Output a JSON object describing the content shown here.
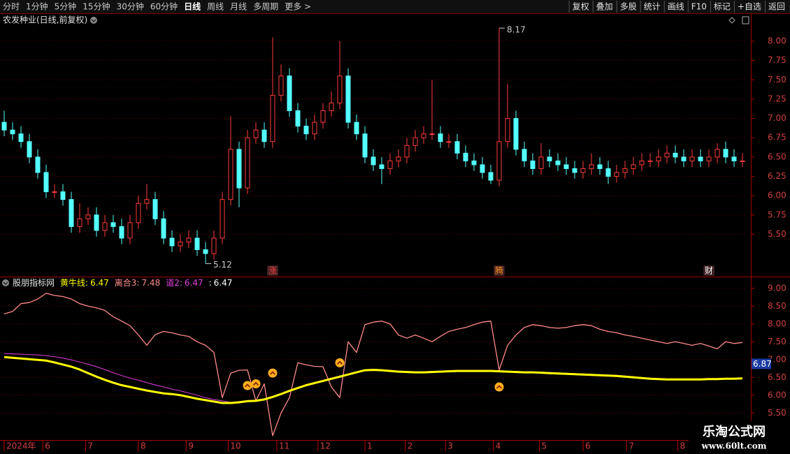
{
  "toolbar": {
    "left": [
      "分时",
      "1分钟",
      "5分钟",
      "15分钟",
      "30分钟",
      "60分钟",
      "日线",
      "周线",
      "月线",
      "多周期",
      "更多 >"
    ],
    "active_index": 6,
    "right": [
      "复权",
      "叠加",
      "多股",
      "统计",
      "画线",
      "F10",
      "标记",
      "+自选",
      "返回"
    ]
  },
  "chart_data": [
    {
      "type": "candlestick",
      "title": "农发种业(日线,前复权)",
      "up_color": "#ff3c3c",
      "down_color": "#54ffff",
      "grid": true,
      "xlim": [
        -0.5,
        88.5
      ],
      "ylim": [
        4.97,
        8.19
      ],
      "yticks": [
        {
          "value": 8,
          "label": "8.00"
        },
        {
          "value": 7.75,
          "label": "7.75"
        },
        {
          "value": 7.5,
          "label": "7.50"
        },
        {
          "value": 7.25,
          "label": "7.25"
        },
        {
          "value": 7,
          "label": "7.00"
        },
        {
          "value": 6.75,
          "label": "6.75"
        },
        {
          "value": 6.5,
          "label": "6.50"
        },
        {
          "value": 6.25,
          "label": "6.25"
        },
        {
          "value": 6,
          "label": "6.00"
        },
        {
          "value": 5.75,
          "label": "5.75"
        },
        {
          "value": 5.5,
          "label": "5.50"
        }
      ],
      "open": [
        6.95,
        6.85,
        6.8,
        6.7,
        6.5,
        6.3,
        6.05,
        6.05,
        5.95,
        5.6,
        5.7,
        5.75,
        5.55,
        5.65,
        5.6,
        5.45,
        5.65,
        5.9,
        5.95,
        5.7,
        5.45,
        5.35,
        5.4,
        5.45,
        5.3,
        5.25,
        5.45,
        5.95,
        6.6,
        6.1,
        6.75,
        6.85,
        6.7,
        7.3,
        7.55,
        7.1,
        6.9,
        6.8,
        6.95,
        7.1,
        7.2,
        7.55,
        6.95,
        6.8,
        6.5,
        6.4,
        6.35,
        6.45,
        6.5,
        6.65,
        6.75,
        6.8,
        6.8,
        6.7,
        6.7,
        6.55,
        6.45,
        6.4,
        6.3,
        6.2,
        6.7,
        7.0,
        6.6,
        6.45,
        6.35,
        6.5,
        6.45,
        6.4,
        6.35,
        6.3,
        6.35,
        6.4,
        6.35,
        6.25,
        6.3,
        6.35,
        6.4,
        6.45,
        6.45,
        6.5,
        6.55,
        6.5,
        6.45,
        6.5,
        6.45,
        6.5,
        6.6,
        6.5,
        6.45
      ],
      "high": [
        7.1,
        6.95,
        6.9,
        6.8,
        6.6,
        6.4,
        6.15,
        6.15,
        6.05,
        5.9,
        5.85,
        5.85,
        5.75,
        5.75,
        5.7,
        5.75,
        6.0,
        6.15,
        6.05,
        5.8,
        5.55,
        5.5,
        5.55,
        5.55,
        5.4,
        5.55,
        6.05,
        7.03,
        6.7,
        6.85,
        6.95,
        6.95,
        8.05,
        7.7,
        7.65,
        7.2,
        7.0,
        7.05,
        7.2,
        7.35,
        8.0,
        7.65,
        7.05,
        6.9,
        6.6,
        6.5,
        6.55,
        6.6,
        6.75,
        6.85,
        6.9,
        7.5,
        6.9,
        6.8,
        6.8,
        6.65,
        6.55,
        6.5,
        6.4,
        8.17,
        7.45,
        7.1,
        6.7,
        6.55,
        6.68,
        6.6,
        6.55,
        6.5,
        6.45,
        6.45,
        6.55,
        6.5,
        6.45,
        6.4,
        6.45,
        6.5,
        6.55,
        6.55,
        6.6,
        6.65,
        6.65,
        6.6,
        6.6,
        6.6,
        6.6,
        6.68,
        6.7,
        6.6,
        6.55
      ],
      "low": [
        6.77,
        6.72,
        6.62,
        6.42,
        6.22,
        5.97,
        5.97,
        5.87,
        5.52,
        5.52,
        5.62,
        5.47,
        5.47,
        5.52,
        5.37,
        5.37,
        5.57,
        5.82,
        5.62,
        5.37,
        5.27,
        5.27,
        5.32,
        5.22,
        5.12,
        5.17,
        5.37,
        5.87,
        5.85,
        6.02,
        6.67,
        6.62,
        6.62,
        7.22,
        7.02,
        6.82,
        6.72,
        6.72,
        6.87,
        7.02,
        7.12,
        6.87,
        6.72,
        6.42,
        6.32,
        6.15,
        6.27,
        6.37,
        6.42,
        6.57,
        6.67,
        6.72,
        6.62,
        6.62,
        6.47,
        6.37,
        6.32,
        6.22,
        6.15,
        6.12,
        6.62,
        6.52,
        6.37,
        6.27,
        6.27,
        6.37,
        6.32,
        6.27,
        6.22,
        6.22,
        6.27,
        6.27,
        6.15,
        6.17,
        6.22,
        6.27,
        6.32,
        6.37,
        6.37,
        6.42,
        6.42,
        6.37,
        6.37,
        6.37,
        6.37,
        6.42,
        6.42,
        6.37,
        6.37
      ],
      "close": [
        6.85,
        6.8,
        6.7,
        6.5,
        6.3,
        6.05,
        6.05,
        5.95,
        5.6,
        5.7,
        5.75,
        5.55,
        5.65,
        5.6,
        5.45,
        5.65,
        5.9,
        5.95,
        5.7,
        5.45,
        5.35,
        5.4,
        5.45,
        5.3,
        5.25,
        5.45,
        5.95,
        6.6,
        6.1,
        6.75,
        6.85,
        6.7,
        7.3,
        7.55,
        7.1,
        6.9,
        6.8,
        6.95,
        7.1,
        7.2,
        7.55,
        6.95,
        6.8,
        6.5,
        6.4,
        6.35,
        6.45,
        6.5,
        6.65,
        6.75,
        6.8,
        6.8,
        6.7,
        6.7,
        6.55,
        6.45,
        6.4,
        6.3,
        6.2,
        6.7,
        7.0,
        6.6,
        6.45,
        6.35,
        6.5,
        6.45,
        6.4,
        6.35,
        6.3,
        6.35,
        6.4,
        6.35,
        6.25,
        6.3,
        6.35,
        6.4,
        6.45,
        6.45,
        6.5,
        6.55,
        6.5,
        6.45,
        6.5,
        6.45,
        6.5,
        6.6,
        6.5,
        6.45,
        6.45
      ],
      "events": [
        {
          "x": 32,
          "label": "涨",
          "color": "#ff4040"
        },
        {
          "x": 59,
          "label": "腾",
          "color": "#ff9020"
        },
        {
          "x": 84,
          "label": "财",
          "color": "#ffffff"
        }
      ]
    },
    {
      "type": "line",
      "title": "股朋指标网",
      "grid": true,
      "xlim": [
        -0.5,
        88.5
      ],
      "ylim": [
        4.76,
        9.29
      ],
      "yticks": [
        {
          "value": 9,
          "label": "9.00"
        },
        {
          "value": 8.5,
          "label": "8.50"
        },
        {
          "value": 8,
          "label": "8.00"
        },
        {
          "value": 7.5,
          "label": "7.50"
        },
        {
          "value": 7,
          "label": "7.00"
        },
        {
          "value": 6.5,
          "label": "6.50"
        },
        {
          "value": 6,
          "label": "6.00"
        },
        {
          "value": 5.5,
          "label": "5.50"
        }
      ],
      "xticks": [
        {
          "value": 0,
          "label": "2024年"
        },
        {
          "value": 4.6,
          "label": "6"
        },
        {
          "value": 9.7,
          "label": "7"
        },
        {
          "value": 16,
          "label": "8"
        },
        {
          "value": 21.7,
          "label": "9"
        },
        {
          "value": 26.7,
          "label": "10"
        },
        {
          "value": 32.5,
          "label": "11"
        },
        {
          "value": 37.4,
          "label": "12"
        },
        {
          "value": 43,
          "label": "1"
        },
        {
          "value": 47.8,
          "label": "2"
        },
        {
          "value": 52.6,
          "label": "3"
        },
        {
          "value": 58.3,
          "label": "4"
        },
        {
          "value": 63.8,
          "label": "5"
        },
        {
          "value": 69,
          "label": "6"
        },
        {
          "value": 74.2,
          "label": "7"
        },
        {
          "value": 80.3,
          "label": "8"
        }
      ],
      "readout_separator": ":",
      "series": [
        {
          "name": "黄牛线",
          "color": "#ffff00",
          "width": 3,
          "values": [
            7.07,
            7.05,
            7.03,
            7.01,
            6.99,
            6.97,
            6.92,
            6.86,
            6.8,
            6.72,
            6.62,
            6.52,
            6.43,
            6.35,
            6.28,
            6.23,
            6.18,
            6.13,
            6.09,
            6.05,
            6.03,
            6.0,
            5.95,
            5.9,
            5.86,
            5.82,
            5.78,
            5.78,
            5.8,
            5.83,
            5.84,
            5.88,
            5.95,
            6.03,
            6.12,
            6.2,
            6.28,
            6.34,
            6.4,
            6.46,
            6.52,
            6.58,
            6.64,
            6.7,
            6.71,
            6.7,
            6.68,
            6.66,
            6.65,
            6.64,
            6.64,
            6.65,
            6.66,
            6.67,
            6.68,
            6.68,
            6.68,
            6.68,
            6.68,
            6.67,
            6.66,
            6.65,
            6.64,
            6.64,
            6.63,
            6.62,
            6.61,
            6.6,
            6.59,
            6.58,
            6.57,
            6.56,
            6.55,
            6.54,
            6.52,
            6.5,
            6.48,
            6.46,
            6.45,
            6.44,
            6.44,
            6.44,
            6.44,
            6.44,
            6.45,
            6.45,
            6.46,
            6.46,
            6.47
          ]
        },
        {
          "name": "离合3",
          "color": "#ff8a8a",
          "width": 1.3,
          "values": [
            8.28,
            8.35,
            8.57,
            8.6,
            8.7,
            8.86,
            8.8,
            8.77,
            8.7,
            8.57,
            8.5,
            8.45,
            8.38,
            8.2,
            8.08,
            7.95,
            7.69,
            7.4,
            7.7,
            7.79,
            7.75,
            7.69,
            7.65,
            7.5,
            7.4,
            7.2,
            5.93,
            6.62,
            6.7,
            6.71,
            5.84,
            6.32,
            4.86,
            5.5,
            5.93,
            6.91,
            6.85,
            6.81,
            6.8,
            6.23,
            5.93,
            7.5,
            7.2,
            7.98,
            8.05,
            8.08,
            8.0,
            7.69,
            7.6,
            7.69,
            7.6,
            7.5,
            7.65,
            7.79,
            7.85,
            7.9,
            7.98,
            8.05,
            8.08,
            6.71,
            7.4,
            7.69,
            7.9,
            7.98,
            7.95,
            7.9,
            7.88,
            7.9,
            7.95,
            7.98,
            7.95,
            7.85,
            7.79,
            7.75,
            7.69,
            7.65,
            7.6,
            7.55,
            7.5,
            7.45,
            7.5,
            7.45,
            7.4,
            7.45,
            7.38,
            7.3,
            7.5,
            7.45,
            7.48
          ]
        },
        {
          "name": "道2",
          "color": "#e040e0",
          "width": 1,
          "values": [
            7.17,
            7.16,
            7.15,
            7.14,
            7.13,
            7.11,
            7.08,
            7.04,
            6.99,
            6.93,
            6.87,
            6.8,
            6.72,
            6.63,
            6.55,
            6.48,
            6.42,
            6.35,
            6.29,
            6.23,
            6.17,
            6.12,
            6.06,
            6.0,
            5.93,
            5.88,
            5.84,
            5.8,
            5.82,
            5.85,
            5.86,
            5.9,
            5.97,
            6.05,
            6.14,
            6.22,
            6.3,
            6.36,
            6.42,
            6.48,
            6.54,
            6.6,
            6.66,
            6.72,
            6.73,
            6.72,
            6.7,
            6.68,
            6.67,
            6.66,
            6.66,
            6.67,
            6.68,
            6.69,
            6.7,
            6.7,
            6.7,
            6.7,
            6.7,
            6.69,
            6.68,
            6.67,
            6.66,
            6.66,
            6.65,
            6.64,
            6.63,
            6.62,
            6.61,
            6.6,
            6.59,
            6.58,
            6.57,
            6.56,
            6.54,
            6.52,
            6.48,
            6.46,
            6.45,
            6.44,
            6.44,
            6.44,
            6.44,
            6.44,
            6.45,
            6.45,
            6.46,
            6.46,
            6.47
          ]
        }
      ],
      "extra_readout": {
        "value": 6.47,
        "color": "#ffffff"
      },
      "signals": {
        "x": [
          29,
          30,
          32,
          40,
          59
        ],
        "values": [
          6.27,
          6.32,
          6.62,
          6.91,
          6.23
        ],
        "color": "#ffb020"
      },
      "cursor_value": 6.87
    }
  ],
  "watermark": {
    "title": "乐淘公式网",
    "url": "www.60lt.com"
  }
}
